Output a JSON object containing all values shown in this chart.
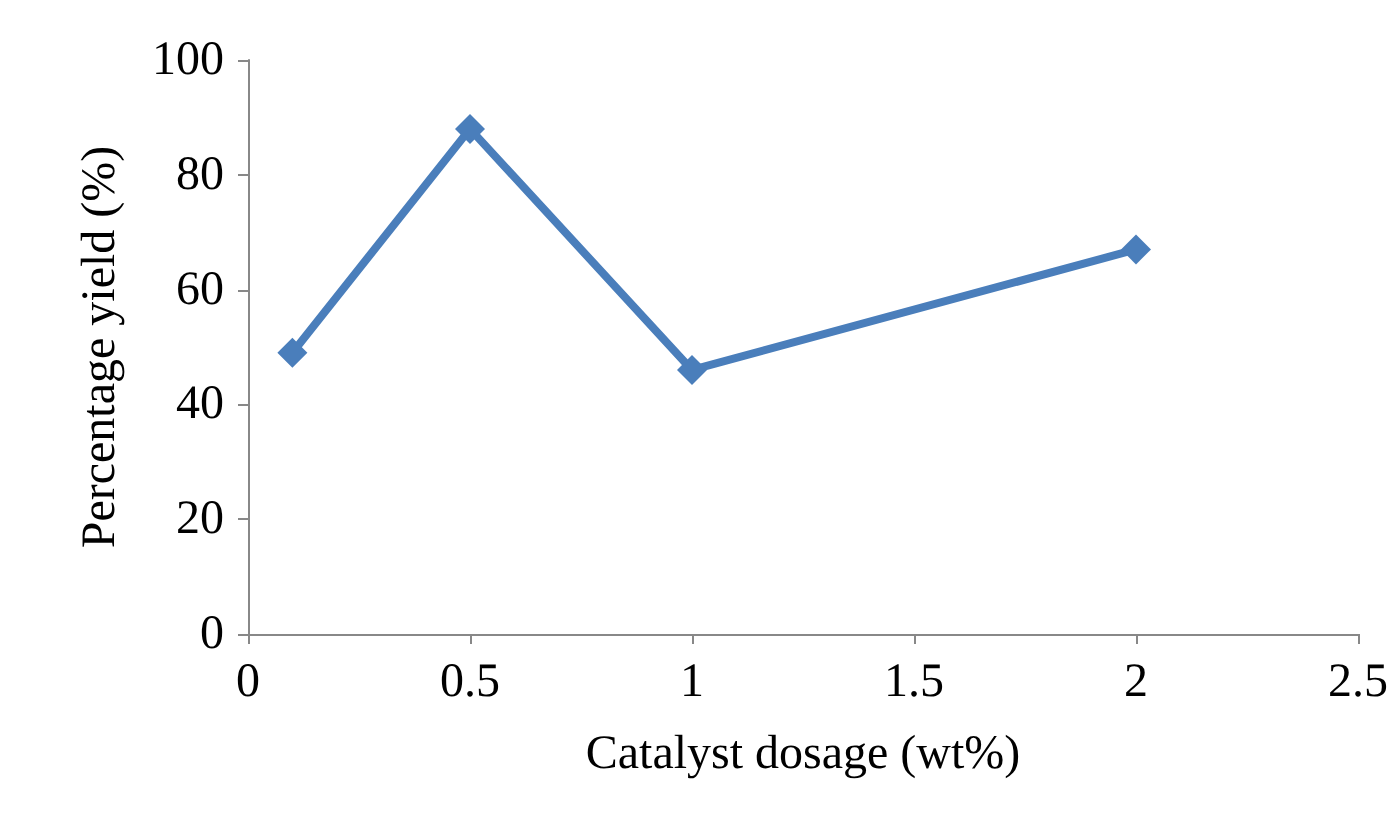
{
  "chart_data": {
    "type": "line",
    "xlabel": "Catalyst dosage (wt%)",
    "ylabel": "Percentage yield (%)",
    "x": [
      0.1,
      0.5,
      1,
      2
    ],
    "series": [
      {
        "color": "#4a7ebb",
        "values": [
          49,
          88,
          46,
          67
        ]
      }
    ],
    "xlim": [
      0,
      2.5
    ],
    "xticks": [
      0,
      0.5,
      1,
      1.5,
      2,
      2.5
    ],
    "ylim": [
      0,
      100
    ],
    "yticks": [
      0,
      20,
      40,
      60,
      80,
      100
    ],
    "grid": false,
    "marker": "diamond",
    "line_style": "solid"
  }
}
